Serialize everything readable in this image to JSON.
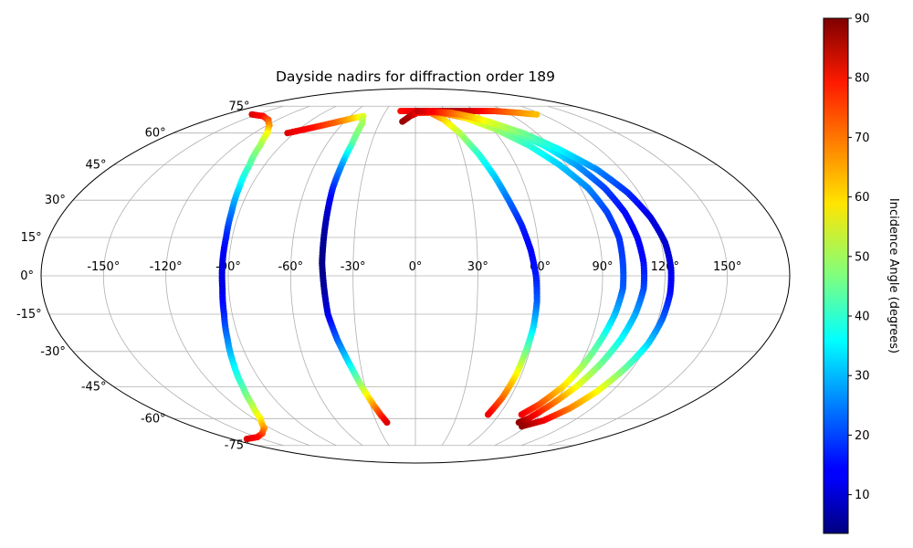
{
  "chart_data": {
    "type": "scatter",
    "projection": "mollweide",
    "title": "Dayside nadirs for diffraction order 189",
    "lon_ticks": [
      -150,
      -120,
      -90,
      -60,
      -30,
      0,
      30,
      60,
      90,
      120,
      150
    ],
    "lat_ticks": [
      -75,
      -60,
      -45,
      -30,
      -15,
      0,
      15,
      30,
      45,
      60,
      75
    ],
    "grid": true,
    "colorbar": {
      "label": "Incidence Angle (degrees)",
      "range": [
        3.5,
        90
      ],
      "ticks": [
        10,
        20,
        30,
        40,
        50,
        60,
        70,
        80,
        90
      ],
      "colormap": "jet"
    },
    "tracks": [
      {
        "points": [
          [
            -155,
            70,
            82
          ],
          [
            -140,
            69,
            79
          ],
          [
            -128,
            67,
            73
          ],
          [
            -118,
            64,
            67
          ],
          [
            -110,
            60,
            58
          ],
          [
            -104,
            54,
            50
          ],
          [
            -99,
            45,
            43
          ],
          [
            -96,
            35,
            34
          ],
          [
            -94,
            25,
            25
          ],
          [
            -93,
            15,
            17
          ],
          [
            -93,
            5,
            12
          ],
          [
            -93,
            -5,
            12
          ],
          [
            -94,
            -15,
            17
          ],
          [
            -96,
            -25,
            25
          ],
          [
            -99,
            -35,
            34
          ],
          [
            -103,
            -45,
            42
          ],
          [
            -108,
            -53,
            50
          ],
          [
            -115,
            -60,
            58
          ],
          [
            -125,
            -65,
            66
          ],
          [
            -137,
            -68,
            72
          ],
          [
            -150,
            -70,
            78
          ],
          [
            -165,
            -71,
            82
          ]
        ]
      },
      {
        "points": [
          [
            -95,
            60,
            82
          ],
          [
            -80,
            63,
            78
          ],
          [
            -65,
            66,
            70
          ],
          [
            -55,
            68,
            62
          ],
          [
            -48,
            69,
            55
          ],
          [
            -44,
            65,
            50
          ],
          [
            -43,
            55,
            44
          ],
          [
            -44,
            45,
            28
          ],
          [
            -45,
            35,
            18
          ],
          [
            -45,
            25,
            10
          ],
          [
            -45,
            15,
            6
          ],
          [
            -45,
            5,
            4
          ],
          [
            -44,
            -5,
            6
          ],
          [
            -43,
            -15,
            12
          ],
          [
            -40,
            -25,
            22
          ],
          [
            -36,
            -35,
            34
          ],
          [
            -32,
            -45,
            50
          ],
          [
            -28,
            -53,
            65
          ],
          [
            -25,
            -58,
            75
          ],
          [
            -22,
            -62,
            82
          ]
        ]
      },
      {
        "points": [
          [
            -15,
            72,
            78
          ],
          [
            -5,
            72,
            80
          ],
          [
            5,
            72,
            82
          ],
          [
            20,
            72,
            85
          ],
          [
            40,
            72,
            86
          ],
          [
            60,
            72,
            82
          ],
          [
            80,
            72,
            75
          ],
          [
            100,
            71,
            68
          ],
          [
            115,
            70,
            63
          ]
        ]
      },
      {
        "points": [
          [
            -11,
            66,
            88
          ],
          [
            -5,
            69,
            86
          ],
          [
            2,
            71,
            80
          ],
          [
            15,
            71,
            72
          ],
          [
            25,
            67,
            62
          ],
          [
            33,
            60,
            52
          ],
          [
            40,
            50,
            40
          ],
          [
            45,
            40,
            32
          ],
          [
            49,
            30,
            24
          ],
          [
            53,
            20,
            17
          ],
          [
            56,
            10,
            14
          ],
          [
            58,
            0,
            16
          ],
          [
            59,
            -10,
            22
          ],
          [
            59,
            -20,
            32
          ],
          [
            58,
            -30,
            45
          ],
          [
            57,
            -40,
            58
          ],
          [
            55,
            -50,
            70
          ],
          [
            52,
            -58,
            80
          ]
        ]
      },
      {
        "points": [
          [
            2,
            72,
            85
          ],
          [
            25,
            71,
            74
          ],
          [
            45,
            68,
            60
          ],
          [
            62,
            62,
            50
          ],
          [
            76,
            54,
            40
          ],
          [
            86,
            45,
            32
          ],
          [
            94,
            35,
            26
          ],
          [
            98,
            25,
            20
          ],
          [
            100,
            15,
            18
          ],
          [
            100,
            5,
            20
          ],
          [
            100,
            -5,
            22
          ],
          [
            98,
            -15,
            30
          ],
          [
            95,
            -25,
            40
          ],
          [
            92,
            -35,
            48
          ],
          [
            88,
            -45,
            60
          ],
          [
            82,
            -53,
            72
          ],
          [
            76,
            -58,
            80
          ]
        ]
      },
      {
        "points": [
          [
            10,
            72,
            82
          ],
          [
            35,
            71,
            70
          ],
          [
            55,
            68,
            58
          ],
          [
            72,
            62,
            48
          ],
          [
            86,
            54,
            38
          ],
          [
            96,
            45,
            28
          ],
          [
            103,
            35,
            20
          ],
          [
            107,
            25,
            15
          ],
          [
            109,
            15,
            14
          ],
          [
            110,
            5,
            15
          ],
          [
            110,
            -5,
            20
          ],
          [
            108,
            -15,
            28
          ],
          [
            105,
            -25,
            36
          ],
          [
            101,
            -35,
            45
          ],
          [
            96,
            -45,
            56
          ],
          [
            90,
            -53,
            70
          ],
          [
            84,
            -60,
            82
          ],
          [
            80,
            -62,
            88
          ]
        ]
      },
      {
        "points": [
          [
            18,
            72,
            80
          ],
          [
            42,
            70,
            68
          ],
          [
            62,
            66,
            56
          ],
          [
            80,
            60,
            46
          ],
          [
            94,
            52,
            36
          ],
          [
            106,
            43,
            26
          ],
          [
            114,
            33,
            18
          ],
          [
            119,
            23,
            12
          ],
          [
            122,
            13,
            10
          ],
          [
            123,
            3,
            12
          ],
          [
            123,
            -7,
            15
          ],
          [
            122,
            -17,
            22
          ],
          [
            120,
            -27,
            32
          ],
          [
            116,
            -37,
            44
          ],
          [
            111,
            -47,
            57
          ],
          [
            105,
            -55,
            68
          ],
          [
            97,
            -61,
            80
          ],
          [
            86,
            -64,
            88
          ]
        ]
      }
    ]
  }
}
